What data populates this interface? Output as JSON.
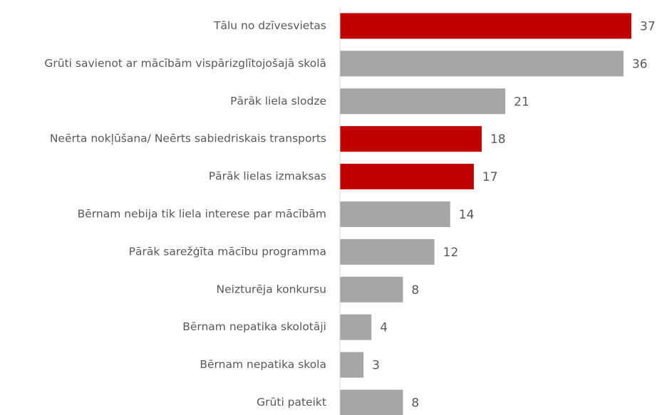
{
  "chart_data": {
    "type": "bar",
    "orientation": "horizontal",
    "categories": [
      "Tālu no dzīvesvietas",
      "Grūti savienot ar mācībām vispārizglītojošajā skolā",
      "Pārāk liela slodze",
      "Neērta nokļūšana/ Neērts sabiedriskais transports",
      "Pārāk lielas izmaksas",
      "Bērnam nebija tik liela interese par mācībām",
      "Pārāk sarežģīta mācību programma",
      "Neizturēja konkursu",
      "Bērnam nepatika skolotāji",
      "Bērnam nepatika skola",
      "Grūti pateikt"
    ],
    "values": [
      37,
      36,
      21,
      18,
      17,
      14,
      12,
      8,
      4,
      3,
      8
    ],
    "colors": [
      "#c00000",
      "#a6a6a6",
      "#a6a6a6",
      "#c00000",
      "#c00000",
      "#a6a6a6",
      "#a6a6a6",
      "#a6a6a6",
      "#a6a6a6",
      "#a6a6a6",
      "#a6a6a6"
    ]
  }
}
